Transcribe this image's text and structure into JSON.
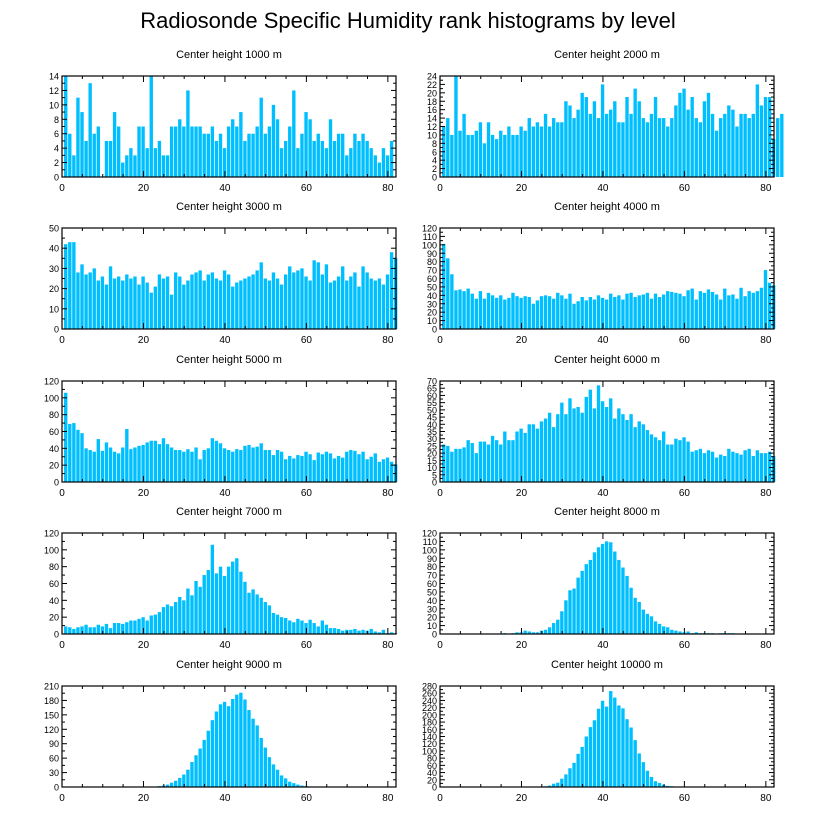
{
  "page": {
    "title": "Radiosonde Specific Humidity rank histograms by level"
  },
  "style": {
    "bar_color": "#00bfff",
    "axis_color": "#000000"
  },
  "chart_data": [
    {
      "type": "bar",
      "title": "Center height 1000 m",
      "xlim": [
        0,
        82
      ],
      "ylim": [
        0,
        14
      ],
      "xticks": [
        0,
        20,
        40,
        60,
        80
      ],
      "yticks": [
        0,
        2,
        4,
        6,
        8,
        10,
        12,
        14
      ],
      "values": [
        14,
        6,
        3,
        11,
        9,
        5,
        13,
        6,
        7,
        0,
        5,
        5,
        9,
        7,
        2,
        3,
        4,
        3,
        7,
        7,
        4,
        14,
        4,
        5,
        3,
        3,
        7,
        7,
        8,
        7,
        12,
        7,
        7,
        7,
        6,
        6,
        7,
        5,
        6,
        4,
        7,
        8,
        7,
        9,
        5,
        6,
        6,
        7,
        11,
        6,
        7,
        10,
        8,
        4,
        5,
        7,
        12,
        4,
        6,
        9,
        8,
        5,
        6,
        5,
        4,
        8,
        5,
        6,
        6,
        3,
        4,
        6,
        5,
        6,
        5,
        4,
        3,
        2,
        4,
        3,
        5
      ]
    },
    {
      "type": "bar",
      "title": "Center height 2000 m",
      "xlim": [
        0,
        82
      ],
      "ylim": [
        0,
        24
      ],
      "xticks": [
        0,
        20,
        40,
        60,
        80
      ],
      "yticks": [
        0,
        2,
        4,
        6,
        8,
        10,
        12,
        14,
        16,
        18,
        20,
        22,
        24
      ],
      "values": [
        12,
        14,
        10,
        24,
        11,
        15,
        10,
        10,
        11,
        13,
        8,
        13,
        10,
        9,
        11,
        10,
        12,
        10,
        10,
        12,
        11,
        14,
        12,
        13,
        12,
        15,
        12,
        14,
        13,
        13,
        18,
        17,
        14,
        16,
        20,
        19,
        15,
        18,
        14,
        22,
        15,
        16,
        18,
        13,
        13,
        19,
        15,
        21,
        18,
        14,
        13,
        15,
        19,
        14,
        14,
        12,
        14,
        17,
        20,
        21,
        16,
        19,
        14,
        13,
        18,
        20,
        15,
        11,
        14,
        15,
        17,
        16,
        12,
        15,
        15,
        14,
        15,
        22,
        17,
        19,
        19,
        9,
        14,
        15
      ]
    },
    {
      "type": "bar",
      "title": "Center height 3000 m",
      "xlim": [
        0,
        82
      ],
      "ylim": [
        0,
        50
      ],
      "xticks": [
        0,
        20,
        40,
        60,
        80
      ],
      "yticks": [
        0,
        10,
        20,
        30,
        40,
        50
      ],
      "values": [
        42,
        43,
        43,
        28,
        32,
        27,
        28,
        30,
        24,
        26,
        22,
        31,
        25,
        26,
        24,
        27,
        25,
        26,
        22,
        26,
        23,
        18,
        21,
        27,
        25,
        26,
        17,
        28,
        26,
        22,
        24,
        27,
        28,
        29,
        24,
        27,
        28,
        25,
        24,
        29,
        27,
        21,
        23,
        24,
        25,
        26,
        27,
        29,
        33,
        25,
        24,
        28,
        25,
        22,
        27,
        31,
        28,
        29,
        30,
        26,
        24,
        34,
        33,
        27,
        32,
        23,
        24,
        26,
        31,
        24,
        26,
        28,
        21,
        31,
        28,
        25,
        24,
        25,
        22,
        27,
        38,
        35
      ]
    },
    {
      "type": "bar",
      "title": "Center height 4000 m",
      "xlim": [
        0,
        82
      ],
      "ylim": [
        0,
        120
      ],
      "xticks": [
        0,
        20,
        40,
        60,
        80
      ],
      "yticks": [
        0,
        10,
        20,
        30,
        40,
        50,
        60,
        70,
        80,
        90,
        100,
        110,
        120
      ],
      "values": [
        101,
        84,
        65,
        46,
        47,
        45,
        48,
        42,
        36,
        45,
        36,
        43,
        40,
        37,
        40,
        35,
        37,
        43,
        39,
        37,
        39,
        38,
        30,
        34,
        39,
        40,
        39,
        36,
        43,
        40,
        36,
        42,
        30,
        33,
        38,
        34,
        38,
        35,
        40,
        37,
        35,
        42,
        38,
        40,
        35,
        42,
        43,
        38,
        40,
        41,
        43,
        36,
        42,
        38,
        41,
        45,
        44,
        43,
        42,
        39,
        46,
        48,
        35,
        45,
        43,
        47,
        44,
        41,
        35,
        48,
        40,
        41,
        36,
        49,
        39,
        45,
        43,
        45,
        49,
        70,
        55,
        52
      ]
    },
    {
      "type": "bar",
      "title": "Center height 5000 m",
      "xlim": [
        0,
        82
      ],
      "ylim": [
        0,
        120
      ],
      "xticks": [
        0,
        20,
        40,
        60,
        80
      ],
      "yticks": [
        0,
        20,
        40,
        60,
        80,
        100,
        120
      ],
      "values": [
        106,
        69,
        70,
        62,
        58,
        40,
        38,
        36,
        51,
        37,
        47,
        41,
        36,
        34,
        41,
        63,
        39,
        41,
        43,
        44,
        47,
        49,
        49,
        45,
        52,
        45,
        41,
        38,
        38,
        36,
        39,
        36,
        41,
        27,
        38,
        40,
        52,
        49,
        46,
        40,
        38,
        36,
        39,
        38,
        43,
        44,
        41,
        42,
        46,
        38,
        38,
        32,
        38,
        36,
        27,
        31,
        28,
        32,
        31,
        36,
        33,
        26,
        35,
        33,
        36,
        34,
        28,
        31,
        29,
        36,
        38,
        37,
        33,
        36,
        27,
        30,
        34,
        24,
        27,
        29,
        24,
        21
      ]
    },
    {
      "type": "bar",
      "title": "Center height 6000 m",
      "xlim": [
        0,
        82
      ],
      "ylim": [
        0,
        70
      ],
      "xticks": [
        0,
        20,
        40,
        60,
        80
      ],
      "yticks": [
        0,
        5,
        10,
        15,
        20,
        25,
        30,
        35,
        40,
        45,
        50,
        55,
        60,
        65,
        70
      ],
      "values": [
        26,
        25,
        21,
        23,
        23,
        24,
        29,
        27,
        20,
        28,
        28,
        26,
        32,
        29,
        26,
        35,
        29,
        29,
        35,
        37,
        34,
        40,
        40,
        37,
        42,
        44,
        48,
        38,
        47,
        55,
        47,
        58,
        51,
        52,
        48,
        59,
        64,
        51,
        67,
        56,
        52,
        58,
        44,
        51,
        47,
        43,
        47,
        38,
        42,
        40,
        36,
        33,
        31,
        29,
        35,
        26,
        26,
        30,
        29,
        31,
        28,
        21,
        22,
        23,
        20,
        22,
        21,
        17,
        19,
        18,
        23,
        21,
        20,
        19,
        22,
        23,
        18,
        22,
        20,
        20,
        21,
        18
      ]
    },
    {
      "type": "bar",
      "title": "Center height 7000 m",
      "xlim": [
        0,
        82
      ],
      "ylim": [
        0,
        120
      ],
      "xticks": [
        0,
        20,
        40,
        60,
        80
      ],
      "yticks": [
        0,
        20,
        40,
        60,
        80,
        100,
        120
      ],
      "values": [
        9,
        8,
        6,
        8,
        9,
        11,
        8,
        8,
        11,
        9,
        12,
        7,
        13,
        13,
        12,
        14,
        16,
        16,
        18,
        20,
        16,
        22,
        23,
        26,
        32,
        35,
        33,
        38,
        44,
        40,
        54,
        46,
        63,
        56,
        70,
        76,
        106,
        72,
        80,
        69,
        80,
        86,
        90,
        74,
        62,
        49,
        53,
        47,
        43,
        38,
        34,
        25,
        23,
        20,
        19,
        16,
        14,
        18,
        16,
        13,
        17,
        13,
        9,
        16,
        11,
        7,
        7,
        6,
        4,
        5,
        5,
        6,
        4,
        5,
        4,
        6,
        3,
        2,
        5,
        1,
        2,
        1
      ]
    },
    {
      "type": "bar",
      "title": "Center height 8000 m",
      "xlim": [
        0,
        82
      ],
      "ylim": [
        0,
        120
      ],
      "xticks": [
        0,
        20,
        40,
        60,
        80
      ],
      "yticks": [
        0,
        10,
        20,
        30,
        40,
        50,
        60,
        70,
        80,
        90,
        100,
        110,
        120
      ],
      "values": [
        0,
        0,
        0,
        0,
        0,
        0,
        0,
        0,
        0,
        0,
        0,
        0,
        0,
        0,
        0,
        1,
        0,
        1,
        2,
        2,
        4,
        3,
        2,
        2,
        4,
        5,
        8,
        13,
        17,
        27,
        40,
        52,
        54,
        67,
        75,
        83,
        88,
        97,
        103,
        107,
        110,
        109,
        98,
        88,
        79,
        69,
        55,
        43,
        38,
        29,
        24,
        21,
        15,
        12,
        9,
        8,
        5,
        4,
        3,
        2,
        3,
        1,
        2,
        1,
        1,
        1,
        1,
        0,
        1,
        1,
        1,
        1,
        0,
        0,
        0,
        0,
        0,
        0,
        0,
        0,
        0,
        0
      ]
    },
    {
      "type": "bar",
      "title": "Center height 9000 m",
      "xlim": [
        0,
        82
      ],
      "ylim": [
        0,
        210
      ],
      "xticks": [
        0,
        20,
        40,
        60,
        80
      ],
      "yticks": [
        0,
        30,
        60,
        90,
        120,
        150,
        180,
        210
      ],
      "values": [
        0,
        0,
        0,
        0,
        0,
        0,
        0,
        0,
        0,
        0,
        0,
        0,
        0,
        0,
        0,
        0,
        0,
        0,
        0,
        0,
        1,
        1,
        1,
        2,
        3,
        5,
        9,
        13,
        19,
        26,
        36,
        52,
        66,
        80,
        98,
        117,
        139,
        157,
        172,
        177,
        168,
        183,
        192,
        196,
        182,
        160,
        142,
        128,
        102,
        82,
        62,
        47,
        36,
        24,
        18,
        11,
        8,
        5,
        3,
        2,
        1,
        0,
        1,
        0,
        0,
        0,
        0,
        0,
        0,
        0,
        0,
        0,
        0,
        0,
        0,
        0,
        0,
        0,
        0,
        0,
        0,
        0
      ]
    },
    {
      "type": "bar",
      "title": "Center height 10000 m",
      "xlim": [
        0,
        82
      ],
      "ylim": [
        0,
        280
      ],
      "xticks": [
        0,
        20,
        40,
        60,
        80
      ],
      "yticks": [
        0,
        20,
        40,
        60,
        80,
        100,
        120,
        140,
        160,
        180,
        200,
        220,
        240,
        260,
        280
      ],
      "values": [
        0,
        0,
        0,
        0,
        0,
        0,
        0,
        0,
        0,
        0,
        0,
        0,
        0,
        0,
        0,
        0,
        0,
        0,
        0,
        0,
        0,
        0,
        0,
        1,
        1,
        2,
        4,
        9,
        12,
        23,
        35,
        52,
        67,
        92,
        111,
        140,
        166,
        185,
        217,
        239,
        223,
        266,
        248,
        226,
        218,
        188,
        165,
        130,
        93,
        69,
        45,
        28,
        16,
        11,
        6,
        3,
        2,
        1,
        1,
        0,
        0,
        0,
        0,
        0,
        0,
        0,
        0,
        0,
        0,
        0,
        0,
        0,
        0,
        0,
        0,
        0,
        0,
        0,
        0,
        0,
        0,
        0
      ]
    }
  ]
}
